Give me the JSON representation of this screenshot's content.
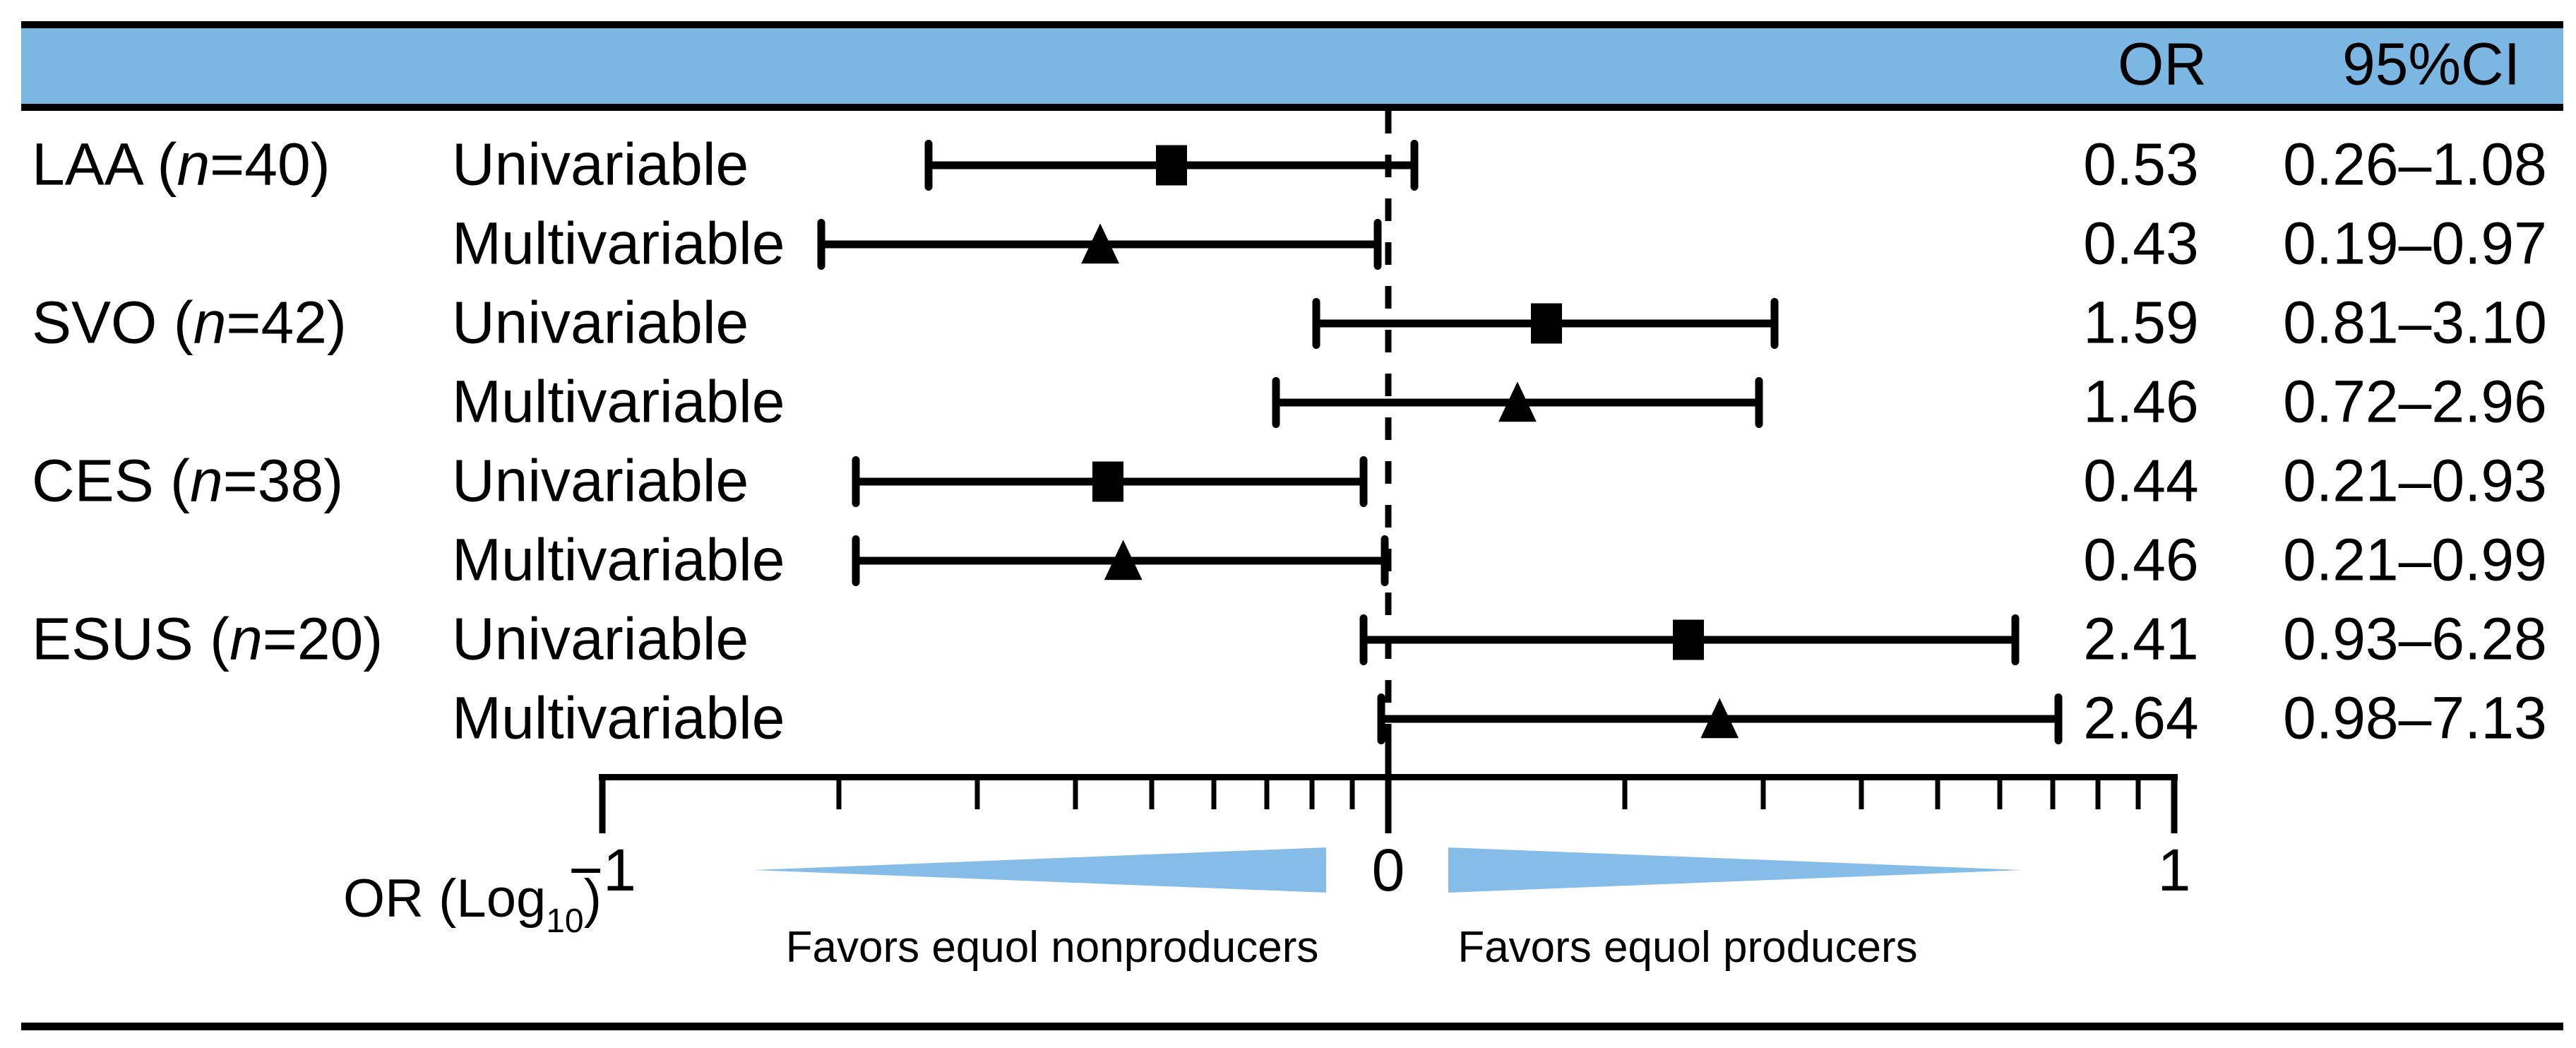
{
  "header": {
    "or_label": "OR",
    "ci_label": "95%CI"
  },
  "axis": {
    "label_main": "OR (Log",
    "label_sub": "10",
    "label_close": ")",
    "tick_labels": {
      "neg1": "−1",
      "zero": "0",
      "pos1": "1"
    }
  },
  "arrows": {
    "left_label": "Favors equol nonproducers",
    "right_label": "Favors equol producers"
  },
  "colors": {
    "header_blue": "#7cb6e2",
    "arrow_blue": "#85bde8",
    "black": "#000000"
  },
  "chart_data": {
    "type": "forest",
    "x_scale": "log10",
    "xlabel": "OR (Log10)",
    "xlim_log10": [
      -1,
      1
    ],
    "major_ticks": [
      {
        "or_value": 0.1,
        "log10": -1,
        "label": "−1"
      },
      {
        "or_value": 1,
        "log10": 0,
        "label": "0"
      },
      {
        "or_value": 10,
        "log10": 1,
        "label": "1"
      }
    ],
    "minor_tick_or_values": [
      0.2,
      0.3,
      0.4,
      0.5,
      0.6,
      0.7,
      0.8,
      0.9,
      2,
      3,
      4,
      5,
      6,
      7,
      8,
      9
    ],
    "columns": {
      "group": "",
      "model": "",
      "or": "OR",
      "ci": "95%CI"
    },
    "rows": [
      {
        "group_pre": "LAA (",
        "group_n": "n",
        "group_post": "=40)",
        "model": "Univariable",
        "marker": "square",
        "or": 0.53,
        "ci_low": 0.26,
        "ci_high": 1.08,
        "or_text": "0.53",
        "ci_text": "0.26–1.08"
      },
      {
        "group_pre": "",
        "group_n": "",
        "group_post": "",
        "model": "Multivariable",
        "marker": "triangle",
        "or": 0.43,
        "ci_low": 0.19,
        "ci_high": 0.97,
        "or_text": "0.43",
        "ci_text": "0.19–0.97"
      },
      {
        "group_pre": "SVO (",
        "group_n": "n",
        "group_post": "=42)",
        "model": "Univariable",
        "marker": "square",
        "or": 1.59,
        "ci_low": 0.81,
        "ci_high": 3.1,
        "or_text": "1.59",
        "ci_text": "0.81–3.10"
      },
      {
        "group_pre": "",
        "group_n": "",
        "group_post": "",
        "model": "Multivariable",
        "marker": "triangle",
        "or": 1.46,
        "ci_low": 0.72,
        "ci_high": 2.96,
        "or_text": "1.46",
        "ci_text": "0.72–2.96"
      },
      {
        "group_pre": "CES (",
        "group_n": "n",
        "group_post": "=38)",
        "model": "Univariable",
        "marker": "square",
        "or": 0.44,
        "ci_low": 0.21,
        "ci_high": 0.93,
        "or_text": "0.44",
        "ci_text": "0.21–0.93"
      },
      {
        "group_pre": "",
        "group_n": "",
        "group_post": "",
        "model": "Multivariable",
        "marker": "triangle",
        "or": 0.46,
        "ci_low": 0.21,
        "ci_high": 0.99,
        "or_text": "0.46",
        "ci_text": "0.21–0.99"
      },
      {
        "group_pre": "ESUS (",
        "group_n": "n",
        "group_post": "=20)",
        "model": "Univariable",
        "marker": "square",
        "or": 2.41,
        "ci_low": 0.93,
        "ci_high": 6.28,
        "or_text": "2.41",
        "ci_text": "0.93–6.28"
      },
      {
        "group_pre": "",
        "group_n": "",
        "group_post": "",
        "model": "Multivariable",
        "marker": "triangle",
        "or": 2.64,
        "ci_low": 0.98,
        "ci_high": 7.13,
        "or_text": "2.64",
        "ci_text": "0.98–7.13"
      }
    ],
    "annotations": {
      "left": "Favors equol nonproducers",
      "right": "Favors equol producers"
    },
    "legend_position": "none",
    "grid": false
  }
}
